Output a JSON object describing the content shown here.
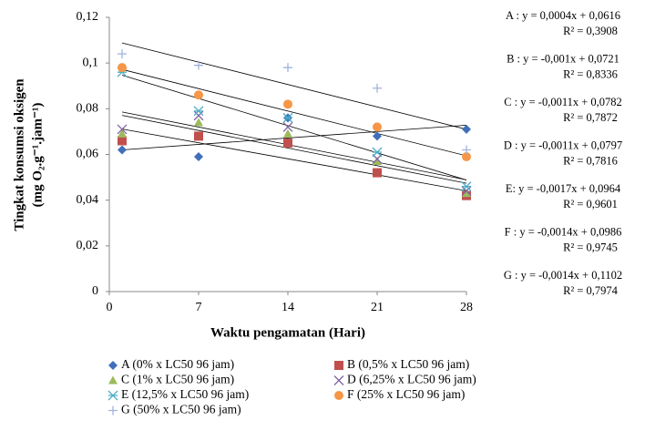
{
  "chart_data": {
    "type": "scatter",
    "x_label": "Waktu pengamatan (Hari)",
    "y_label": [
      "Tingkat konsumsi oksigen",
      "(mg O₂.g⁻¹.jam⁻¹)"
    ],
    "x": [
      1,
      7,
      14,
      21,
      28
    ],
    "xlim": [
      0,
      28
    ],
    "xticks": [
      0,
      7,
      14,
      21,
      28
    ],
    "ylim": [
      0,
      0.12
    ],
    "yticks": [
      0,
      {
        "value": 0.02,
        "label": "0,02"
      },
      {
        "value": 0.04,
        "label": "0,04"
      },
      {
        "value": 0.06,
        "label": "0,06"
      },
      {
        "value": 0.08,
        "label": "0,08"
      },
      {
        "value": 0.1,
        "label": "0,1"
      },
      {
        "value": 0.12,
        "label": "0,12"
      }
    ],
    "series": [
      {
        "name": "A (0% x LC50 96 jam)",
        "color": "#3f6fba",
        "marker": "diamond",
        "values": [
          0.062,
          0.059,
          0.076,
          0.068,
          0.071
        ]
      },
      {
        "name": "B (0,5% x LC50 96 jam)",
        "color": "#c0504d",
        "marker": "square",
        "values": [
          0.066,
          0.068,
          0.065,
          0.052,
          0.042
        ]
      },
      {
        "name": "C (1% x LC50 96 jam)",
        "color": "#9bbb59",
        "marker": "triangle",
        "values": [
          0.069,
          0.074,
          0.069,
          0.057,
          0.043
        ]
      },
      {
        "name": "D (6,25% x LC50 96 jam)",
        "color": "#8064a2",
        "marker": "x",
        "values": [
          0.071,
          0.077,
          0.072,
          0.058,
          0.044
        ]
      },
      {
        "name": "E (12,5% x LC50 96 jam)",
        "color": "#4bacc6",
        "marker": "asterisk",
        "values": [
          0.096,
          0.079,
          0.076,
          0.061,
          0.046
        ]
      },
      {
        "name": "F (25% x LC50 96 jam)",
        "color": "#f79646",
        "marker": "circle",
        "values": [
          0.098,
          0.086,
          0.082,
          0.072,
          0.059
        ]
      },
      {
        "name": "G (50% x LC50 96 jam)",
        "color": "#9fb4dc",
        "marker": "plus",
        "values": [
          0.104,
          0.099,
          0.098,
          0.089,
          0.062
        ]
      }
    ],
    "trendlines": [
      {
        "equation": "A : y = 0,0004x + 0,0616",
        "r_squared": "R² = 0,3908",
        "slope": 0.0004,
        "intercept": 0.0616
      },
      {
        "equation": "B : y = -0,001x + 0,0721",
        "r_squared": "R² = 0,8336",
        "slope": -0.001,
        "intercept": 0.0721
      },
      {
        "equation": "C : y = -0,0011x + 0,0782",
        "r_squared": "R² = 0,7872",
        "slope": -0.0011,
        "intercept": 0.0782
      },
      {
        "equation": "D : y = -0,0011x + 0,0797",
        "r_squared": "R² = 0,7816",
        "slope": -0.0011,
        "intercept": 0.0797
      },
      {
        "equation": "E: y = -0,0017x + 0,0964",
        "r_squared": "R² = 0,9601",
        "slope": -0.0017,
        "intercept": 0.0964
      },
      {
        "equation": "F : y = -0,0014x + 0,0986",
        "r_squared": "R² = 0,9745",
        "slope": -0.0014,
        "intercept": 0.0986
      },
      {
        "equation": "G : y = -0,0014x + 0,1102",
        "r_squared": "R² = 0,7974",
        "slope": -0.0014,
        "intercept": 0.1102
      }
    ]
  }
}
